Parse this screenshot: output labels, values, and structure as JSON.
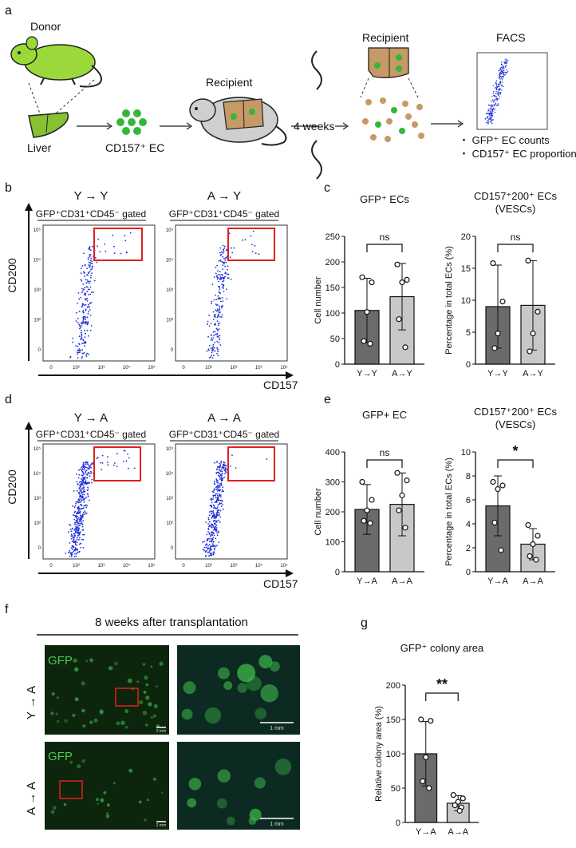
{
  "panel_letters": {
    "a": "a",
    "b": "b",
    "c": "c",
    "d": "d",
    "e": "e",
    "f": "f",
    "g": "g"
  },
  "panel_a": {
    "donor": "Donor",
    "liver": "Liver",
    "cells": "CD157⁺ EC",
    "recipient_1": "Recipient",
    "weeks": "4 weeks",
    "recipient_2": "Recipient",
    "facs": "FACS",
    "bullet_1": "・ GFP⁺ EC counts",
    "bullet_2": "・ CD157⁺ EC proportion"
  },
  "flow": {
    "y_label": "CD200",
    "x_label": "CD157",
    "gate_label": "GFP⁺CD31⁺CD45⁻ gated",
    "y_ticks": [
      "0",
      "10²",
      "10³",
      "10⁴",
      "10⁵"
    ],
    "x_ticks": [
      "0",
      "10²",
      "10³",
      "10⁴",
      "10⁵"
    ],
    "b_left_title": "Y → Y",
    "b_right_title": "A → Y",
    "d_left_title": "Y → A",
    "d_right_title": "A → A"
  },
  "panel_f": {
    "title": "8 weeks after transplantation",
    "row_top": "Y → A",
    "row_bottom": "A → A",
    "gfp": "GFP",
    "scale_small": "2 mm",
    "scale_large": "1 mm"
  },
  "colors": {
    "dark_bar": "#6b6b6b",
    "light_bar": "#c8c8c8",
    "gate": "#e0201c",
    "dots": "#1f2fd6",
    "green": "#35b63a"
  },
  "chart_data": [
    {
      "id": "c1",
      "type": "bar",
      "title": "GFP⁺ ECs",
      "ylabel": "Cell number",
      "categories": [
        "Y→Y",
        "A→Y"
      ],
      "values": [
        105,
        132
      ],
      "errors": [
        63,
        65
      ],
      "points": [
        [
          170,
          160,
          102,
          45,
          40
        ],
        [
          195,
          165,
          160,
          88,
          33
        ]
      ],
      "ylim": [
        0,
        250
      ],
      "yticks": [
        "0",
        "50",
        "100",
        "150",
        "200",
        "250"
      ],
      "sig": "ns"
    },
    {
      "id": "c2",
      "type": "bar",
      "title": "CD157⁺200⁺ ECs",
      "subtitle": "(VESCs)",
      "ylabel": "Percentage in total ECs (%)",
      "categories": [
        "Y→Y",
        "A→Y"
      ],
      "values": [
        9.0,
        9.2
      ],
      "errors": [
        6.5,
        7.0
      ],
      "points": [
        [
          15.8,
          9.8,
          4.8,
          2.5
        ],
        [
          16.2,
          8.2,
          4.8,
          2.0
        ]
      ],
      "ylim": [
        0,
        20
      ],
      "yticks": [
        "0",
        "5",
        "10",
        "15",
        "20"
      ],
      "sig": "ns"
    },
    {
      "id": "e1",
      "type": "bar",
      "title": "GFP+ EC",
      "ylabel": "Cell number",
      "categories": [
        "Y→A",
        "A→A"
      ],
      "values": [
        208,
        225
      ],
      "errors": [
        83,
        105
      ],
      "points": [
        [
          300,
          240,
          205,
          170,
          162
        ],
        [
          330,
          305,
          255,
          205,
          147
        ]
      ],
      "ylim": [
        0,
        400
      ],
      "yticks": [
        "0",
        "100",
        "200",
        "300",
        "400"
      ],
      "sig": "ns"
    },
    {
      "id": "e2",
      "type": "bar",
      "title": "CD157⁺200⁺ ECs",
      "subtitle": "(VESCs)",
      "ylabel": "Percentage in total ECs (%)",
      "categories": [
        "Y→A",
        "A→A"
      ],
      "values": [
        5.5,
        2.3
      ],
      "errors": [
        2.5,
        1.3
      ],
      "points": [
        [
          7.5,
          7.2,
          6.9,
          4.1,
          1.8
        ],
        [
          3.9,
          3.0,
          2.3,
          1.3,
          1.0
        ]
      ],
      "ylim": [
        0,
        10
      ],
      "yticks": [
        "0",
        "2",
        "4",
        "6",
        "8",
        "10"
      ],
      "sig": "*"
    },
    {
      "id": "g1",
      "type": "bar",
      "title": "GFP⁺ colony area",
      "ylabel": "Relative colony area (%)",
      "categories": [
        "Y→A",
        "A→A"
      ],
      "values": [
        100,
        28
      ],
      "errors": [
        47,
        11
      ],
      "points": [
        [
          150,
          148,
          95,
          60,
          50
        ],
        [
          40,
          35,
          30,
          25,
          22,
          17
        ]
      ],
      "ylim": [
        0,
        200
      ],
      "yticks": [
        "0",
        "50",
        "100",
        "150",
        "200"
      ],
      "sig": "**"
    }
  ]
}
